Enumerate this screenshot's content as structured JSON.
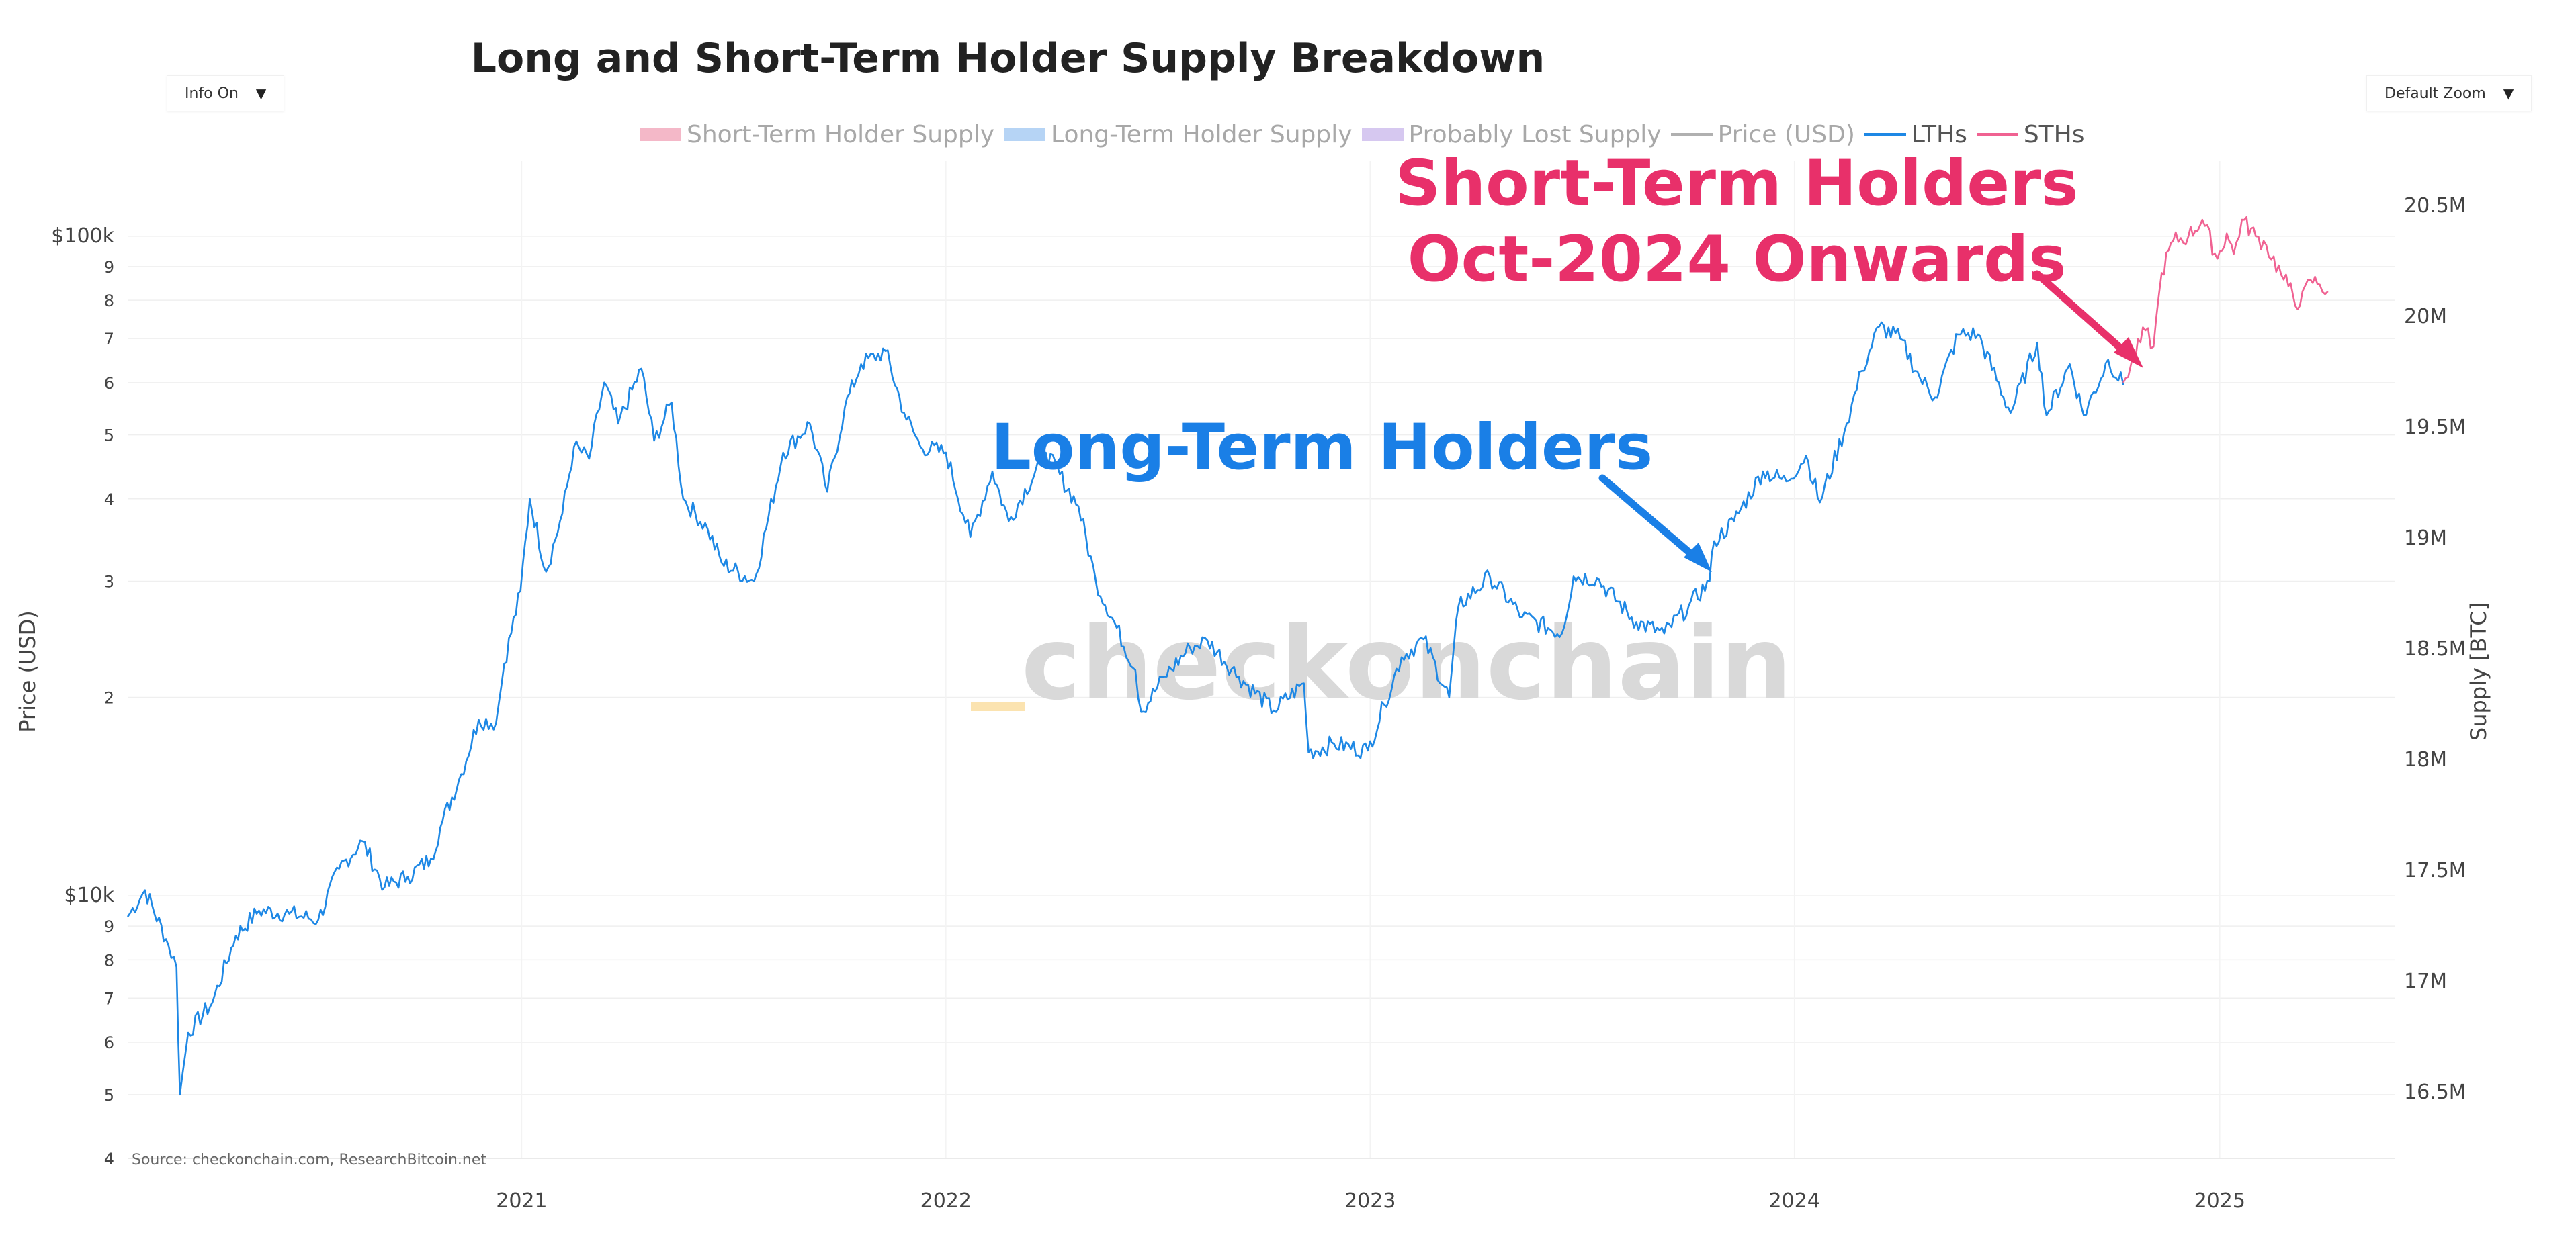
{
  "header": {
    "title": "Long and Short-Term Holder Supply Breakdown",
    "info_label": "Info On",
    "zoom_label": "Default Zoom"
  },
  "legend": [
    {
      "label": "Short-Term Holder Supply",
      "color": "#f4b8c8",
      "kind": "fill",
      "state": "muted"
    },
    {
      "label": "Long-Term Holder Supply",
      "color": "#b6d4f5",
      "kind": "fill",
      "state": "muted"
    },
    {
      "label": "Probably Lost Supply",
      "color": "#d6c8f0",
      "kind": "fill",
      "state": "muted"
    },
    {
      "label": "Price (USD)",
      "color": "#b0b0b0",
      "kind": "line",
      "state": "muted"
    },
    {
      "label": "LTHs",
      "color": "#1e88e5",
      "kind": "line",
      "state": "active"
    },
    {
      "label": "STHs",
      "color": "#f06292",
      "kind": "line",
      "state": "active"
    }
  ],
  "watermark": "checkonchain",
  "source": "Source: checkonchain.com, ResearchBitcoin.net",
  "annotations": {
    "lth": {
      "text": "Long-Term Holders",
      "color": "#1a7fe6"
    },
    "sth_line1": {
      "text": "Short-Term Holders",
      "color": "#e8306a"
    },
    "sth_line2": {
      "text": "Oct-2024 Onwards",
      "color": "#e8306a"
    }
  },
  "chart_data": {
    "type": "line",
    "title": "Long and Short-Term Holder Supply Breakdown",
    "xlabel": "",
    "ylabel": "Price (USD)",
    "y2label": "Supply [BTC]",
    "yscale": "log",
    "ylim": [
      4000,
      130000
    ],
    "y2lim": [
      16200000,
      20700000
    ],
    "xlim": [
      "2020-01-28",
      "2025-06-01"
    ],
    "grid": true,
    "x_ticks": [
      "2021",
      "2022",
      "2023",
      "2024",
      "2025"
    ],
    "y_ticks": [
      "$100k",
      "9",
      "8",
      "7",
      "6",
      "5",
      "4",
      "3",
      "2",
      "$10k",
      "9",
      "8",
      "7",
      "6",
      "5",
      "4"
    ],
    "y2_ticks": [
      "20.5M",
      "20M",
      "19.5M",
      "19M",
      "18.5M",
      "18M",
      "17.5M",
      "17M",
      "16.5M"
    ],
    "series": [
      {
        "name": "LTHs",
        "color": "#1e88e5",
        "points": [
          [
            "2020-01-28",
            9300
          ],
          [
            "2020-02-12",
            10200
          ],
          [
            "2020-03-01",
            8600
          ],
          [
            "2020-03-10",
            7800
          ],
          [
            "2020-03-13",
            5000
          ],
          [
            "2020-03-20",
            6200
          ],
          [
            "2020-04-10",
            6900
          ],
          [
            "2020-04-30",
            8700
          ],
          [
            "2020-05-20",
            9500
          ],
          [
            "2020-06-15",
            9400
          ],
          [
            "2020-07-10",
            9200
          ],
          [
            "2020-07-28",
            11000
          ],
          [
            "2020-08-17",
            12100
          ],
          [
            "2020-09-05",
            10300
          ],
          [
            "2020-09-25",
            10700
          ],
          [
            "2020-10-15",
            11400
          ],
          [
            "2020-10-25",
            13000
          ],
          [
            "2020-11-10",
            15300
          ],
          [
            "2020-11-25",
            18500
          ],
          [
            "2020-12-10",
            18300
          ],
          [
            "2020-12-17",
            22500
          ],
          [
            "2020-12-31",
            29000
          ],
          [
            "2021-01-08",
            40000
          ],
          [
            "2021-01-22",
            31000
          ],
          [
            "2021-02-05",
            38000
          ],
          [
            "2021-02-15",
            48000
          ],
          [
            "2021-02-28",
            46000
          ],
          [
            "2021-03-13",
            60000
          ],
          [
            "2021-03-25",
            52000
          ],
          [
            "2021-04-14",
            63000
          ],
          [
            "2021-04-25",
            49000
          ],
          [
            "2021-05-10",
            56000
          ],
          [
            "2021-05-20",
            40000
          ],
          [
            "2021-06-10",
            36000
          ],
          [
            "2021-06-22",
            32000
          ],
          [
            "2021-07-20",
            30000
          ],
          [
            "2021-08-14",
            47000
          ],
          [
            "2021-09-06",
            52000
          ],
          [
            "2021-09-21",
            41000
          ],
          [
            "2021-10-06",
            55000
          ],
          [
            "2021-10-20",
            64000
          ],
          [
            "2021-11-10",
            67000
          ],
          [
            "2021-11-26",
            54000
          ],
          [
            "2021-12-10",
            48000
          ],
          [
            "2022-01-01",
            47000
          ],
          [
            "2022-01-22",
            35000
          ],
          [
            "2022-02-10",
            44000
          ],
          [
            "2022-02-24",
            37000
          ],
          [
            "2022-03-28",
            47000
          ],
          [
            "2022-04-25",
            39000
          ],
          [
            "2022-05-10",
            30000
          ],
          [
            "2022-06-13",
            22000
          ],
          [
            "2022-06-18",
            19000
          ],
          [
            "2022-07-08",
            21500
          ],
          [
            "2022-07-30",
            23800
          ],
          [
            "2022-08-14",
            24400
          ],
          [
            "2022-09-10",
            21500
          ],
          [
            "2022-10-10",
            19100
          ],
          [
            "2022-11-05",
            21000
          ],
          [
            "2022-11-09",
            16500
          ],
          [
            "2022-12-01",
            17000
          ],
          [
            "2022-12-30",
            16600
          ],
          [
            "2023-01-13",
            19500
          ],
          [
            "2023-01-28",
            23000
          ],
          [
            "2023-02-16",
            24500
          ],
          [
            "2023-03-10",
            20000
          ],
          [
            "2023-03-18",
            27500
          ],
          [
            "2023-04-14",
            30500
          ],
          [
            "2023-05-12",
            26500
          ],
          [
            "2023-06-15",
            25000
          ],
          [
            "2023-06-25",
            30500
          ],
          [
            "2023-07-15",
            30300
          ],
          [
            "2023-08-18",
            26000
          ],
          [
            "2023-09-11",
            25000
          ],
          [
            "2023-10-02",
            27500
          ],
          [
            "2023-10-20",
            30000
          ],
          [
            "2023-10-24",
            34500
          ],
          [
            "2023-11-10",
            37000
          ],
          [
            "2023-12-05",
            44000
          ],
          [
            "2023-12-25",
            42500
          ],
          [
            "2024-01-11",
            46500
          ],
          [
            "2024-01-23",
            39500
          ],
          [
            "2024-02-15",
            52000
          ],
          [
            "2024-02-28",
            62500
          ],
          [
            "2024-03-14",
            73000
          ],
          [
            "2024-04-01",
            70000
          ],
          [
            "2024-04-18",
            61000
          ],
          [
            "2024-05-01",
            57000
          ],
          [
            "2024-05-21",
            71000
          ],
          [
            "2024-06-07",
            71000
          ],
          [
            "2024-07-05",
            54000
          ],
          [
            "2024-07-28",
            69000
          ],
          [
            "2024-08-05",
            53500
          ],
          [
            "2024-08-25",
            64000
          ],
          [
            "2024-09-06",
            53500
          ],
          [
            "2024-09-27",
            65000
          ],
          [
            "2024-10-10",
            59500
          ]
        ]
      },
      {
        "name": "STHs",
        "color": "#f06292",
        "points": [
          [
            "2024-10-10",
            60000
          ],
          [
            "2024-10-29",
            72000
          ],
          [
            "2024-11-05",
            68000
          ],
          [
            "2024-11-12",
            88000
          ],
          [
            "2024-11-22",
            98500
          ],
          [
            "2024-12-05",
            100000
          ],
          [
            "2024-12-17",
            106000
          ],
          [
            "2024-12-30",
            92500
          ],
          [
            "2025-01-07",
            101000
          ],
          [
            "2025-01-13",
            94000
          ],
          [
            "2025-01-20",
            106000
          ],
          [
            "2025-02-01",
            100000
          ],
          [
            "2025-02-10",
            97000
          ],
          [
            "2025-02-25",
            86000
          ],
          [
            "2025-03-01",
            84000
          ],
          [
            "2025-03-11",
            78500
          ],
          [
            "2025-03-20",
            86000
          ],
          [
            "2025-03-28",
            84500
          ],
          [
            "2025-04-04",
            82500
          ]
        ]
      }
    ]
  }
}
